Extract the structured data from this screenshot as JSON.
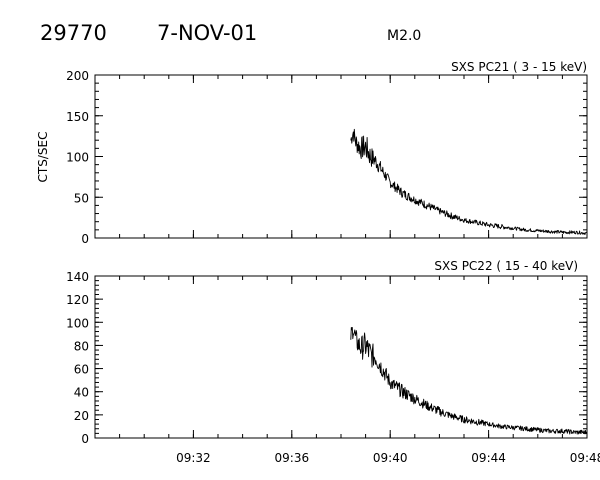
{
  "header": {
    "event_number": "29770",
    "date": "7-NOV-01",
    "flare_class": "M2.0"
  },
  "chart_data": [
    {
      "type": "line",
      "title": "SXS PC21  (  3 - 15 keV)",
      "ylabel": "CTS/SEC",
      "xlabel": "",
      "xlim": [
        "09:28",
        "09:48"
      ],
      "ylim": [
        0,
        200
      ],
      "y_ticks": [
        0,
        50,
        100,
        150,
        200
      ],
      "x_ticks": [
        "09:32",
        "09:36",
        "09:40",
        "09:44",
        "09:48"
      ],
      "show_x_tick_labels": false,
      "series": [
        {
          "x": [
            "09:38.4",
            "09:38.5",
            "09:38.6",
            "09:38.8",
            "09:39.0",
            "09:39.2",
            "09:39.4",
            "09:40.0",
            "09:40.5",
            "09:41.0",
            "09:41.5",
            "09:42.0",
            "09:42.5",
            "09:43.0",
            "09:43.5",
            "09:44.0",
            "09:44.5",
            "09:45.0",
            "09:45.5",
            "09:46.0",
            "09:46.5",
            "09:47.0",
            "09:47.5",
            "09:48.0"
          ],
          "y": [
            120,
            130,
            118,
            110,
            112,
            100,
            95,
            68,
            55,
            47,
            40,
            33,
            27,
            22,
            19,
            16,
            14,
            12,
            10,
            9,
            8,
            7,
            7,
            6
          ],
          "noise": [
            10,
            10,
            12,
            14,
            16,
            14,
            10,
            6,
            6,
            5,
            5,
            4,
            4,
            3,
            3,
            3,
            3,
            2,
            2,
            2,
            2,
            2,
            2,
            2
          ]
        }
      ]
    },
    {
      "type": "line",
      "title": "SXS PC22  ( 15 - 40 keV)",
      "ylabel": "",
      "xlabel": "",
      "xlim": [
        "09:28",
        "09:48"
      ],
      "ylim": [
        0,
        140
      ],
      "y_ticks": [
        0,
        20,
        40,
        60,
        80,
        100,
        120,
        140
      ],
      "x_ticks": [
        "09:32",
        "09:36",
        "09:40",
        "09:44",
        "09:48"
      ],
      "show_x_tick_labels": true,
      "series": [
        {
          "x": [
            "09:38.4",
            "09:38.5",
            "09:38.6",
            "09:38.8",
            "09:39.0",
            "09:39.2",
            "09:39.4",
            "09:40.0",
            "09:40.5",
            "09:41.0",
            "09:41.5",
            "09:42.0",
            "09:42.5",
            "09:43.0",
            "09:43.5",
            "09:44.0",
            "09:44.5",
            "09:45.0",
            "09:45.5",
            "09:46.0",
            "09:46.5",
            "09:47.0",
            "09:47.5",
            "09:48.0"
          ],
          "y": [
            88,
            95,
            85,
            78,
            80,
            72,
            70,
            48,
            40,
            34,
            28,
            23,
            19,
            16,
            14,
            12,
            10,
            9,
            8,
            7,
            6,
            6,
            5,
            5
          ],
          "noise": [
            8,
            8,
            9,
            10,
            12,
            12,
            9,
            6,
            6,
            5,
            4,
            4,
            3,
            3,
            3,
            2,
            2,
            2,
            2,
            2,
            2,
            2,
            2,
            2
          ]
        }
      ]
    }
  ]
}
